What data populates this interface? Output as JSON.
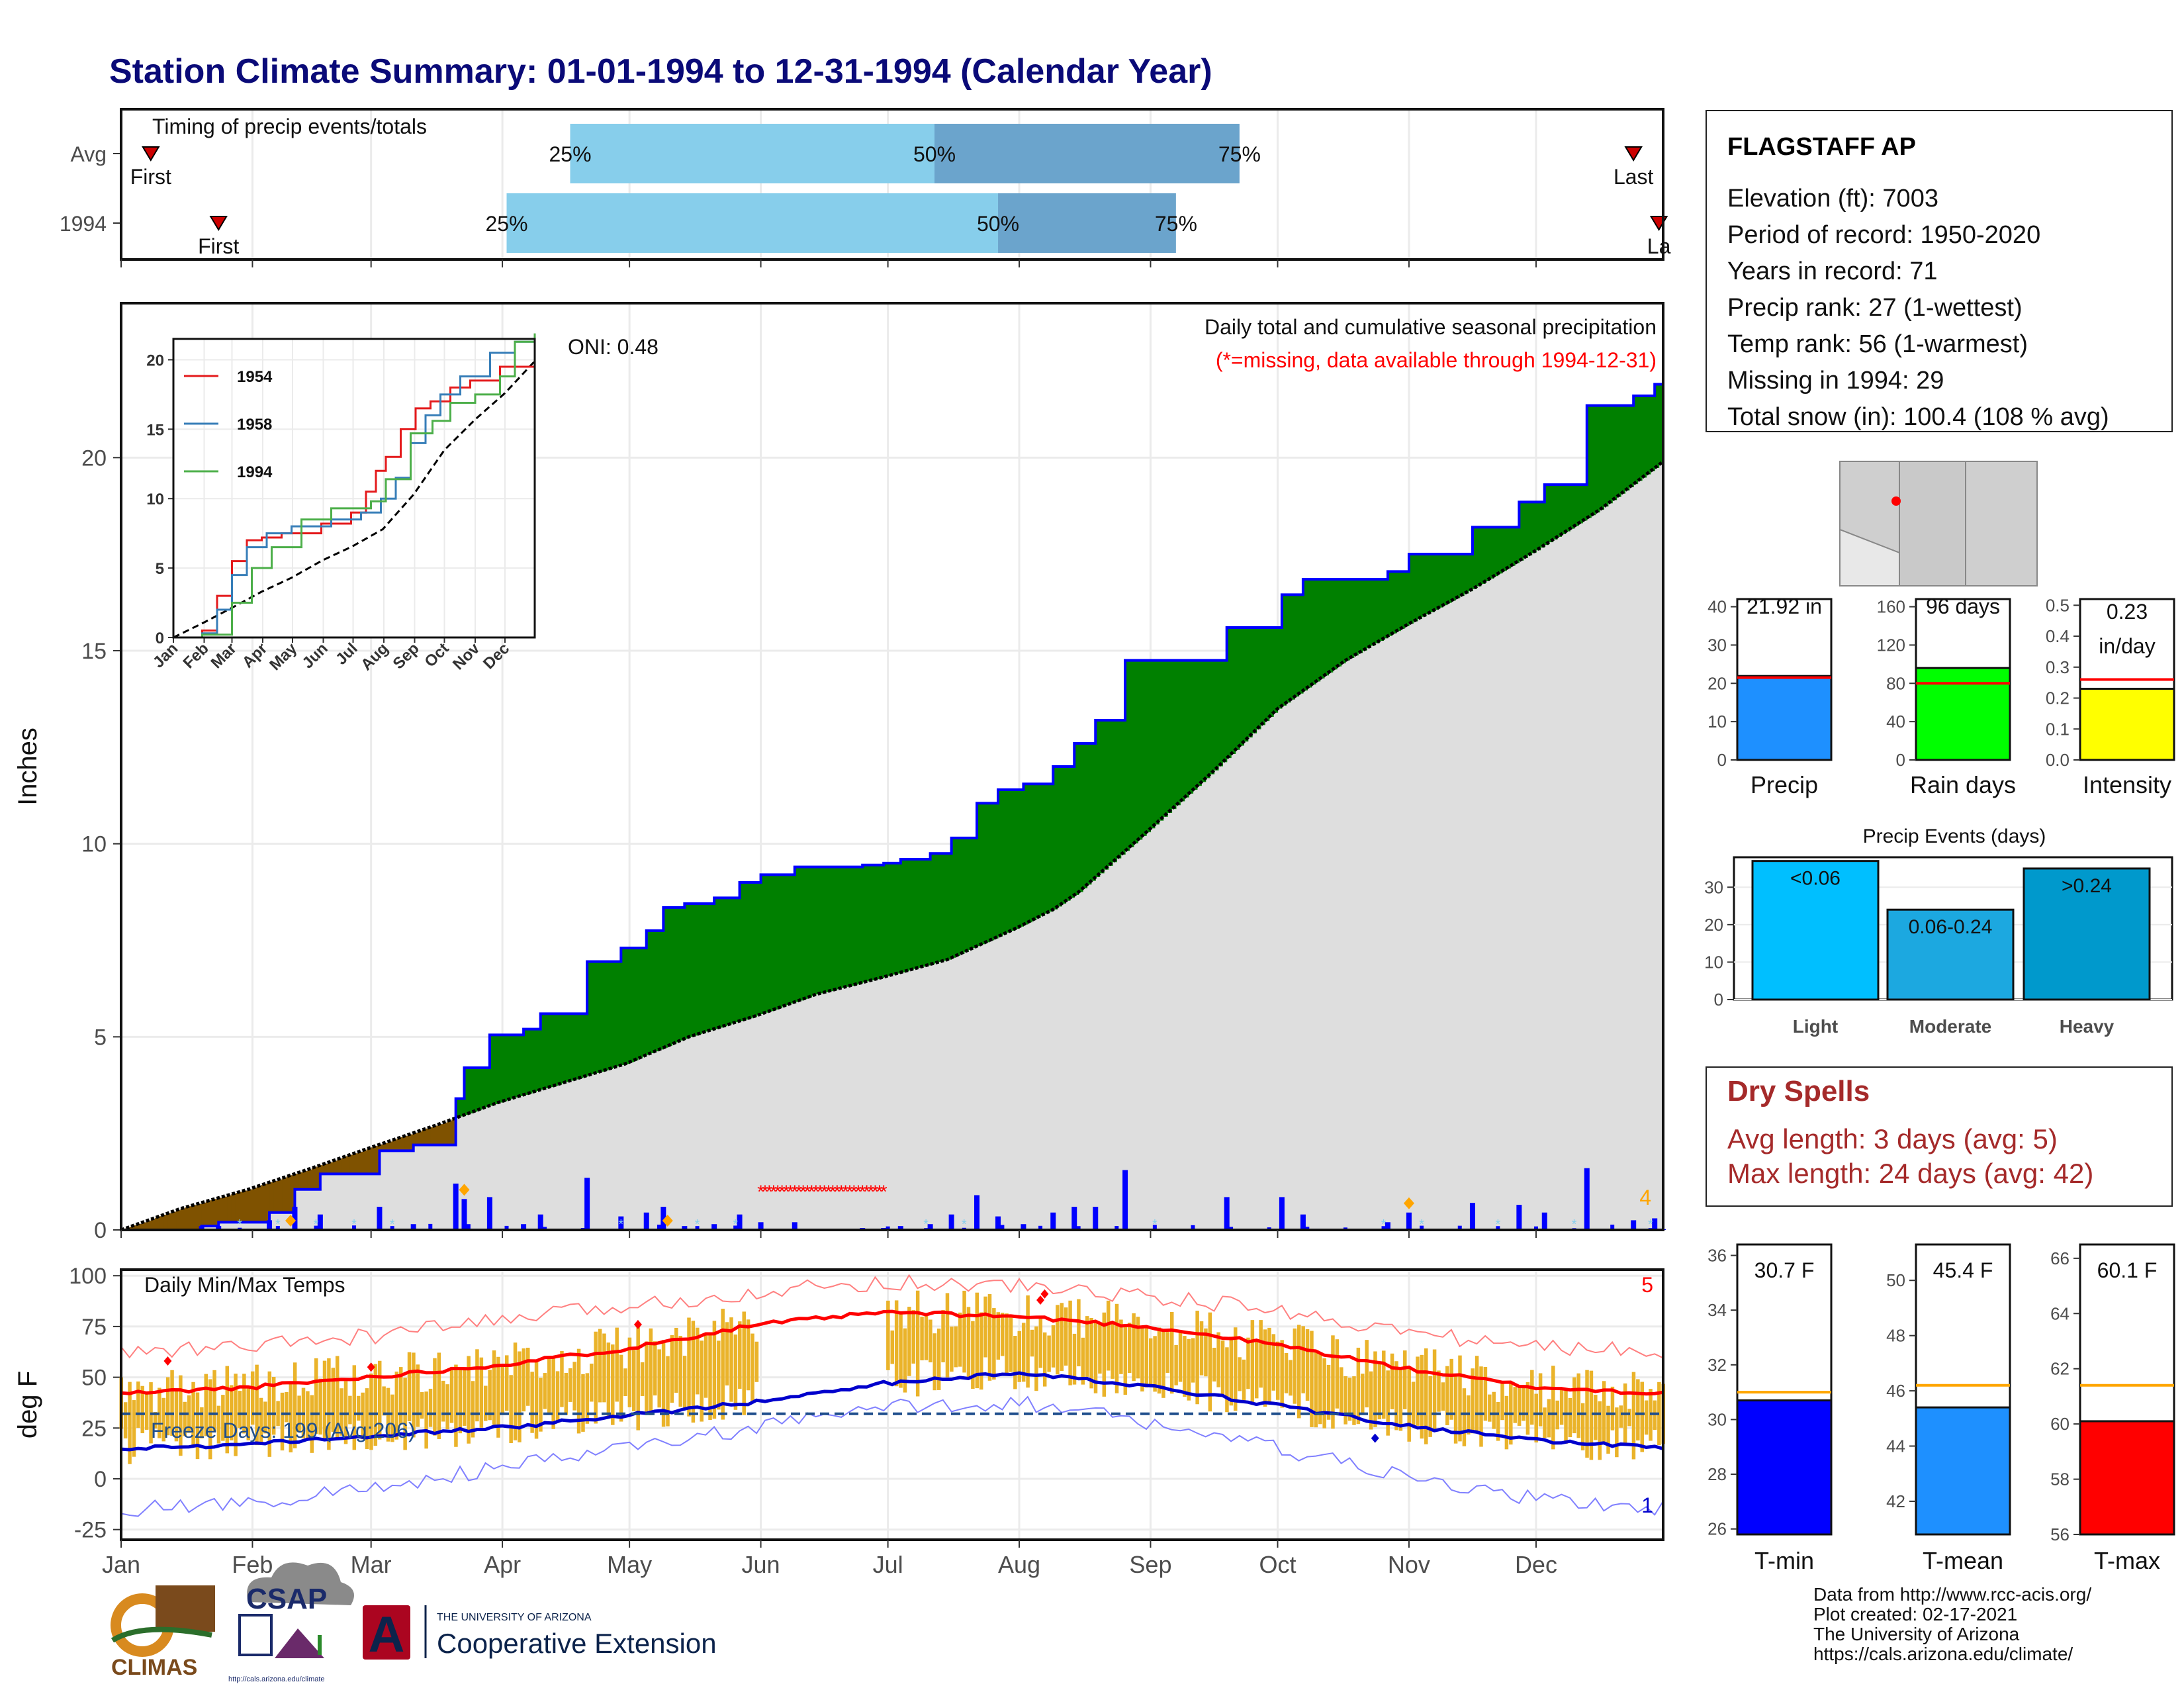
{
  "title": "Station Climate Summary: 01-01-1994 to 12-31-1994 (Calendar Year)",
  "months": [
    "Jan",
    "Feb",
    "Mar",
    "Apr",
    "May",
    "Jun",
    "Jul",
    "Aug",
    "Sep",
    "Oct",
    "Nov",
    "Dec"
  ],
  "colors": {
    "title": "#0a0a78",
    "rain": "#0000ff",
    "surplus": "#008000",
    "deficit": "#7f5200",
    "normal_fill": "#dedede",
    "tmax": "#ff0000",
    "tmin": "#0000cc",
    "bars": "#eab32a",
    "marker": "#ffa500",
    "dryspell": "#a52a2a"
  },
  "station": {
    "name": "FLAGSTAFF AP",
    "lines": [
      "Elevation (ft): 7003",
      "Period of record: 1950-2020",
      "Years in record: 71",
      "Precip rank: 27 (1-wettest)",
      "Temp rank: 56 (1-warmest)",
      "Missing in 1994: 29",
      "Total snow (in): 100.4 (108 % avg)"
    ]
  },
  "timing": {
    "label": "Timing of precip events/totals",
    "rows": [
      {
        "name": "Avg",
        "first": "First",
        "last": "Last",
        "first_doy": 8,
        "last_doy": 358,
        "p25_doy": 107,
        "p50_doy": 193,
        "p75_doy": 265
      },
      {
        "name": "1994",
        "first": "First",
        "last": "La",
        "first_doy": 24,
        "last_doy": 364,
        "p25_doy": 92,
        "p50_doy": 208,
        "p75_doy": 250
      }
    ],
    "pct_labels": [
      "25%",
      "50%",
      "75%"
    ]
  },
  "chart_data": [
    {
      "type": "area",
      "name": "cumulative_precip",
      "ylabel": "Inches",
      "ylim": [
        0,
        24
      ],
      "yticks": [
        0,
        5,
        10,
        15,
        20
      ],
      "title_right": "Daily total and cumulative seasonal precipitation",
      "missing_note": "(*=missing, data available through 1994-12-31)",
      "oni": "ONI: 0.48",
      "corner_label": "4",
      "normal_cumulative": [
        [
          1,
          0
        ],
        [
          15,
          0.55
        ],
        [
          31,
          1.05
        ],
        [
          46,
          1.6
        ],
        [
          59,
          2.1
        ],
        [
          75,
          2.7
        ],
        [
          90,
          3.3
        ],
        [
          105,
          3.8
        ],
        [
          120,
          4.3
        ],
        [
          135,
          5.0
        ],
        [
          151,
          5.55
        ],
        [
          165,
          6.1
        ],
        [
          181,
          6.55
        ],
        [
          196,
          7.0
        ],
        [
          212,
          7.8
        ],
        [
          221,
          8.3
        ],
        [
          227,
          8.75
        ],
        [
          243,
          10.3
        ],
        [
          259,
          11.9
        ],
        [
          274,
          13.5
        ],
        [
          290,
          14.75
        ],
        [
          305,
          15.7
        ],
        [
          320,
          16.6
        ],
        [
          335,
          17.6
        ],
        [
          350,
          18.65
        ],
        [
          365,
          19.9
        ]
      ],
      "year_cumulative": [
        [
          1,
          0
        ],
        [
          20,
          0.1
        ],
        [
          24,
          0.2
        ],
        [
          36,
          0.45
        ],
        [
          42,
          1.05
        ],
        [
          48,
          1.45
        ],
        [
          62,
          2.05
        ],
        [
          70,
          2.2
        ],
        [
          80,
          3.4
        ],
        [
          82,
          4.2
        ],
        [
          88,
          5.05
        ],
        [
          96,
          5.2
        ],
        [
          100,
          5.6
        ],
        [
          111,
          6.95
        ],
        [
          119,
          7.3
        ],
        [
          125,
          7.75
        ],
        [
          129,
          8.35
        ],
        [
          134,
          8.45
        ],
        [
          137,
          8.45
        ],
        [
          141,
          8.6
        ],
        [
          147,
          9.0
        ],
        [
          152,
          9.2
        ],
        [
          160,
          9.4
        ],
        [
          176,
          9.45
        ],
        [
          181,
          9.5
        ],
        [
          185,
          9.6
        ],
        [
          192,
          9.75
        ],
        [
          197,
          10.15
        ],
        [
          203,
          11.05
        ],
        [
          208,
          11.4
        ],
        [
          214,
          11.55
        ],
        [
          221,
          12.0
        ],
        [
          226,
          12.6
        ],
        [
          231,
          13.2
        ],
        [
          238,
          14.75
        ],
        [
          249,
          14.75
        ],
        [
          262,
          15.6
        ],
        [
          275,
          16.45
        ],
        [
          280,
          16.85
        ],
        [
          295,
          16.85
        ],
        [
          300,
          17.05
        ],
        [
          305,
          17.5
        ],
        [
          320,
          18.2
        ],
        [
          331,
          18.85
        ],
        [
          337,
          19.3
        ],
        [
          347,
          21.35
        ],
        [
          358,
          21.6
        ],
        [
          363,
          21.9
        ],
        [
          365,
          21.92
        ]
      ],
      "daily_markers_doy": [
        41,
        82,
        130,
        305
      ],
      "missing_range": [
        152,
        181
      ]
    },
    {
      "type": "line",
      "name": "inset_cumulative",
      "xlabels": [
        "Jan",
        "Feb",
        "Mar",
        "Apr",
        "May",
        "Jun",
        "Jul",
        "Aug",
        "Sep",
        "Oct",
        "Nov",
        "Dec"
      ],
      "yticks": [
        0,
        5,
        10,
        15,
        20
      ],
      "ylim": [
        0,
        21.5
      ],
      "series": [
        {
          "name": "1954",
          "color": "#e41a1c",
          "points": [
            [
              1,
              0
            ],
            [
              30,
              0.5
            ],
            [
              45,
              3
            ],
            [
              60,
              5.5
            ],
            [
              75,
              7
            ],
            [
              90,
              7.2
            ],
            [
              110,
              7.5
            ],
            [
              150,
              8.2
            ],
            [
              180,
              9
            ],
            [
              195,
              10.5
            ],
            [
              205,
              12
            ],
            [
              215,
              13
            ],
            [
              230,
              15
            ],
            [
              245,
              16.5
            ],
            [
              260,
              17
            ],
            [
              280,
              18
            ],
            [
              300,
              18.5
            ],
            [
              330,
              19.5
            ],
            [
              365,
              20
            ]
          ]
        },
        {
          "name": "1958",
          "color": "#377eb8",
          "points": [
            [
              1,
              0
            ],
            [
              30,
              0.3
            ],
            [
              45,
              2
            ],
            [
              60,
              4.5
            ],
            [
              75,
              6.5
            ],
            [
              95,
              7.5
            ],
            [
              120,
              8
            ],
            [
              160,
              8.5
            ],
            [
              190,
              9
            ],
            [
              210,
              10
            ],
            [
              225,
              11.5
            ],
            [
              240,
              14
            ],
            [
              255,
              16
            ],
            [
              270,
              17.5
            ],
            [
              290,
              18.8
            ],
            [
              320,
              20.5
            ],
            [
              345,
              21.3
            ],
            [
              365,
              21.5
            ]
          ]
        },
        {
          "name": "1994",
          "color": "#4daf4a",
          "points": [
            [
              1,
              0
            ],
            [
              30,
              0.2
            ],
            [
              60,
              2.5
            ],
            [
              80,
              5
            ],
            [
              100,
              6.5
            ],
            [
              130,
              8.5
            ],
            [
              160,
              9.3
            ],
            [
              200,
              9.8
            ],
            [
              215,
              11.4
            ],
            [
              240,
              14.7
            ],
            [
              262,
              15.6
            ],
            [
              280,
              16.9
            ],
            [
              305,
              17.5
            ],
            [
              330,
              18.8
            ],
            [
              345,
              21.3
            ],
            [
              365,
              21.9
            ]
          ]
        }
      ],
      "normal_points": [
        [
          1,
          0
        ],
        [
          31,
          1.05
        ],
        [
          59,
          2.1
        ],
        [
          90,
          3.3
        ],
        [
          120,
          4.3
        ],
        [
          151,
          5.55
        ],
        [
          181,
          6.55
        ],
        [
          212,
          7.8
        ],
        [
          243,
          10.3
        ],
        [
          274,
          13.5
        ],
        [
          305,
          15.7
        ],
        [
          335,
          17.6
        ],
        [
          365,
          19.9
        ]
      ]
    },
    {
      "type": "bar",
      "name": "daily_temps",
      "ylabel": "deg F",
      "title": "Daily Min/Max Temps",
      "ylim": [
        -30,
        103
      ],
      "yticks": [
        -25,
        0,
        25,
        50,
        75,
        100
      ],
      "freeze_label": "Freeze Days: 199 (Avg:206)",
      "freeze_line": 32,
      "corner_top": "5",
      "corner_bottom": "1",
      "normal_max": [
        [
          1,
          42
        ],
        [
          31,
          45
        ],
        [
          59,
          50
        ],
        [
          90,
          56
        ],
        [
          120,
          64
        ],
        [
          151,
          76
        ],
        [
          181,
          82
        ],
        [
          212,
          80
        ],
        [
          243,
          75
        ],
        [
          274,
          66
        ],
        [
          305,
          54
        ],
        [
          335,
          45
        ],
        [
          365,
          42
        ]
      ],
      "normal_min": [
        [
          1,
          15
        ],
        [
          31,
          17
        ],
        [
          59,
          21
        ],
        [
          90,
          25
        ],
        [
          120,
          31
        ],
        [
          151,
          38
        ],
        [
          181,
          47
        ],
        [
          212,
          52
        ],
        [
          243,
          46
        ],
        [
          274,
          36
        ],
        [
          305,
          26
        ],
        [
          335,
          19
        ],
        [
          365,
          15
        ]
      ],
      "record_max": [
        [
          1,
          62
        ],
        [
          31,
          65
        ],
        [
          59,
          70
        ],
        [
          90,
          78
        ],
        [
          120,
          85
        ],
        [
          151,
          92
        ],
        [
          181,
          97
        ],
        [
          212,
          95
        ],
        [
          243,
          90
        ],
        [
          274,
          83
        ],
        [
          305,
          72
        ],
        [
          335,
          65
        ],
        [
          365,
          63
        ]
      ],
      "record_min": [
        [
          1,
          -15
        ],
        [
          31,
          -12
        ],
        [
          59,
          -5
        ],
        [
          90,
          5
        ],
        [
          120,
          15
        ],
        [
          151,
          25
        ],
        [
          181,
          35
        ],
        [
          212,
          38
        ],
        [
          243,
          28
        ],
        [
          274,
          15
        ],
        [
          305,
          0
        ],
        [
          335,
          -10
        ],
        [
          365,
          -15
        ]
      ],
      "missing_range": [
        152,
        181
      ]
    }
  ],
  "map": {
    "region": "Arizona"
  },
  "precip_stats": [
    {
      "label": "Precip",
      "value_text": "21.92 in",
      "value": 21.92,
      "avg": 21.5,
      "yticks": [
        0,
        10,
        20,
        30,
        40
      ],
      "ymax": 42,
      "color": "#1e90ff"
    },
    {
      "label": "Rain days",
      "value_text": "96 days",
      "value": 96,
      "avg": 80,
      "yticks": [
        0,
        40,
        80,
        120,
        160
      ],
      "ymax": 168,
      "color": "#00ff00"
    },
    {
      "label": "Intensity",
      "value_text": "0.23",
      "value_text2": "in/day",
      "value": 0.23,
      "avg": 0.26,
      "yticks": [
        0.0,
        0.1,
        0.2,
        0.3,
        0.4,
        0.5
      ],
      "ymax": 0.52,
      "color": "#ffff00",
      "decimals": 1
    }
  ],
  "precip_events": {
    "title": "Precip Events (days)",
    "yticks": [
      0,
      10,
      20,
      30
    ],
    "ymax": 38,
    "bars": [
      {
        "cat": "Light",
        "label": "<0.06",
        "value": 37,
        "color": "#00bfff"
      },
      {
        "cat": "Moderate",
        "label": "0.06-0.24",
        "value": 24,
        "color": "#1ca8e0"
      },
      {
        "cat": "Heavy",
        "label": ">0.24",
        "value": 35,
        "color": "#0099cc"
      }
    ]
  },
  "dry_spells": {
    "title": "Dry Spells",
    "avg": "Avg length: 3 days (avg: 5)",
    "max": "Max length: 24 days (avg: 42)"
  },
  "temp_stats": [
    {
      "label": "T-min",
      "value_text": "30.7 F",
      "value": 30.7,
      "avg": 31.0,
      "ymin": 25.8,
      "ymax": 36.4,
      "yticks": [
        26,
        28,
        30,
        32,
        34,
        36
      ],
      "color": "#0000ff"
    },
    {
      "label": "T-mean",
      "value_text": "45.4 F",
      "value": 45.4,
      "avg": 46.2,
      "ymin": 40.8,
      "ymax": 51.3,
      "yticks": [
        42,
        44,
        46,
        48,
        50
      ],
      "color": "#1e90ff"
    },
    {
      "label": "T-max",
      "value_text": "60.1 F",
      "value": 60.1,
      "avg": 61.4,
      "ymin": 56.0,
      "ymax": 66.5,
      "yticks": [
        56,
        58,
        60,
        62,
        64,
        66
      ],
      "color": "#ff0000"
    }
  ],
  "footer": {
    "lines": [
      "Data from http://www.rcc-acis.org/",
      "Plot created: 02-17-2021",
      "The University of Arizona",
      "https://cals.arizona.edu/climate/"
    ],
    "logos": {
      "climas": "CLIMAS",
      "csap": "CSAP",
      "csap_url": "http://cals.arizona.edu/climate",
      "ua_small": "THE UNIVERSITY OF ARIZONA",
      "ua_big": "Cooperative Extension",
      "ua_letter": "A"
    }
  }
}
